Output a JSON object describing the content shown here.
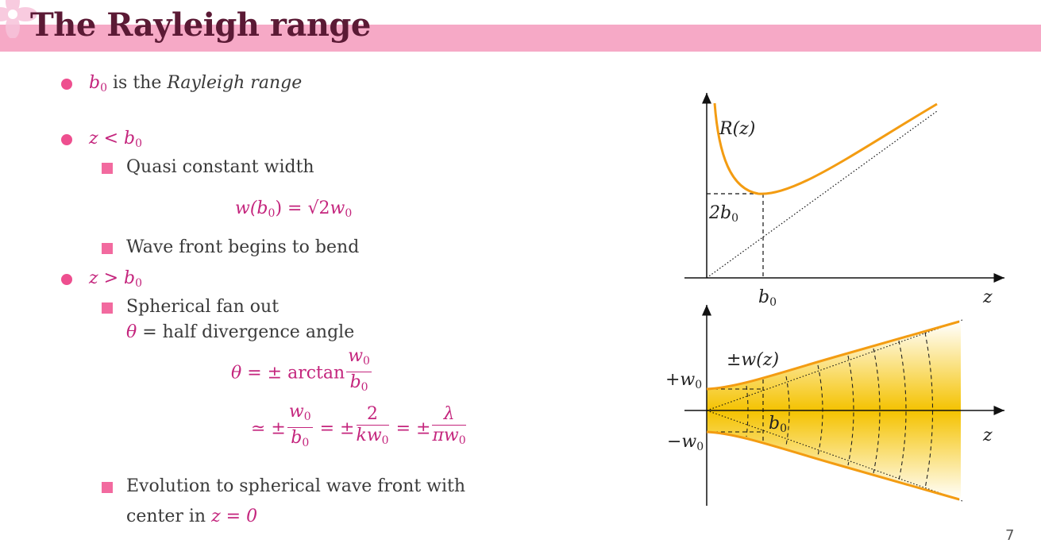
{
  "slide": {
    "title": "The Rayleigh range",
    "page_number": "7",
    "accent_color": "#f6a9c6",
    "bullet_color": "#ee4f8f",
    "math_color": "#c4257d",
    "curve_color": "#f39c12"
  },
  "bullets": {
    "b1": {
      "sym": "b",
      "sub": "0",
      "text": " is the ",
      "em": "Rayleigh range"
    },
    "b2": {
      "z": "z",
      "op": " < ",
      "b": "b",
      "sub": "0",
      "s1": "Quasi constant width",
      "eq": {
        "lhs": "w",
        "arg": "(b",
        "argsub": "0",
        "argclose": ")",
        "eq": " = ",
        "sqrt": "√2",
        "w": "w",
        "wsub": "0"
      },
      "s2": "Wave front begins to bend"
    },
    "b3": {
      "z": "z",
      "op": " > ",
      "b": "b",
      "sub": "0",
      "s1": "Spherical fan out",
      "s1b_sym": "θ",
      "s1b_text": " = half divergence angle",
      "eq1": {
        "theta": "θ",
        "rel": " = ± arctan",
        "num": "w",
        "num_sub": "0",
        "den": "b",
        "den_sub": "0"
      },
      "eq2": {
        "approx": "≃ ±",
        "f1_num": "w",
        "f1_num_sub": "0",
        "f1_den": "b",
        "f1_den_sub": "0",
        "eq_a": " = ±",
        "f2_num": "2",
        "f2_den": "kw",
        "f2_den_sub": "0",
        "eq_b": " = ±",
        "f3_num": "λ",
        "f3_den": "πw",
        "f3_den_sub": "0"
      },
      "s3_line1": "Evolution to spherical wave front with",
      "s3_line2_pre": "center in ",
      "s3_line2_math": "z = 0"
    }
  },
  "figure": {
    "top": {
      "curve_label": "R(z)",
      "y_mark": "2b",
      "y_mark_sub": "0",
      "x_mark": "b",
      "x_mark_sub": "0",
      "x_axis": "z"
    },
    "bottom": {
      "envelope_label": "±w(z)",
      "plus_w": "+w",
      "plus_w_sub": "0",
      "minus_w": "−w",
      "minus_w_sub": "0",
      "b_mark": "b",
      "b_mark_sub": "0",
      "x_axis": "z"
    }
  }
}
